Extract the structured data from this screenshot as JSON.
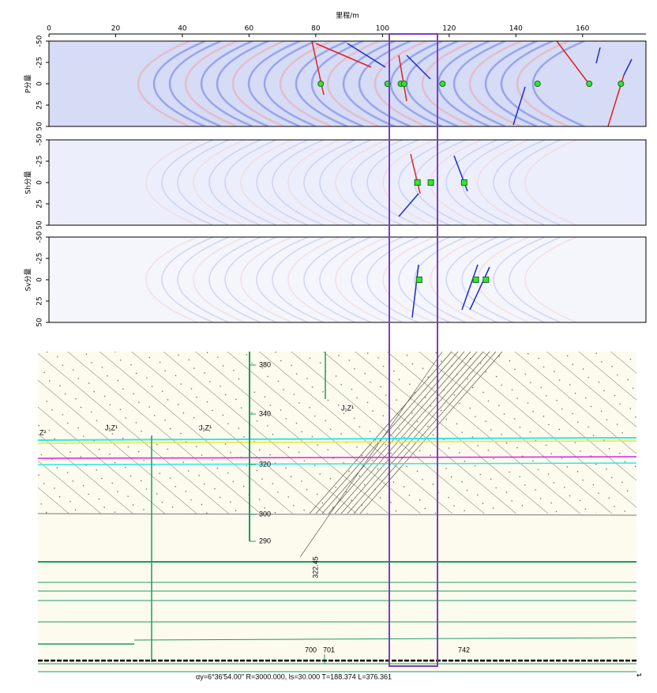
{
  "axis": {
    "title": "里程/m",
    "xlim": [
      0,
      179
    ],
    "xticks": [
      0,
      20,
      40,
      60,
      80,
      100,
      120,
      140,
      160
    ],
    "ylim": [
      -50,
      50
    ],
    "yticks": [
      -50,
      -25,
      0,
      25,
      50
    ]
  },
  "panels": [
    {
      "label": "P分量",
      "marker": "circle",
      "x": [
        81.5,
        101.5,
        105.5,
        106.5,
        118,
        146.5,
        162,
        171.5
      ],
      "y": [
        0,
        0,
        0,
        0,
        0,
        0,
        0,
        0
      ]
    },
    {
      "label": "Sh分量",
      "marker": "square",
      "x": [
        110.5,
        114.5,
        124.5
      ],
      "y": [
        0,
        0,
        0
      ]
    },
    {
      "label": "Sv分量",
      "marker": "square",
      "x": [
        111,
        128,
        131
      ],
      "y": [
        0,
        0,
        0
      ]
    }
  ],
  "geology": {
    "strata": [
      "Z²",
      "J₁Z¹",
      "J₁Z¹",
      "J₁Z¹"
    ],
    "elevations": [
      "380",
      "340",
      "320",
      "300",
      "290"
    ],
    "elevation_note": "322.45",
    "stations": [
      "700",
      "701",
      "742"
    ],
    "curve": "αy=6°36'54.00\"  R=3000.000,  ls=30.000  T=188.374  L=376.361"
  }
}
